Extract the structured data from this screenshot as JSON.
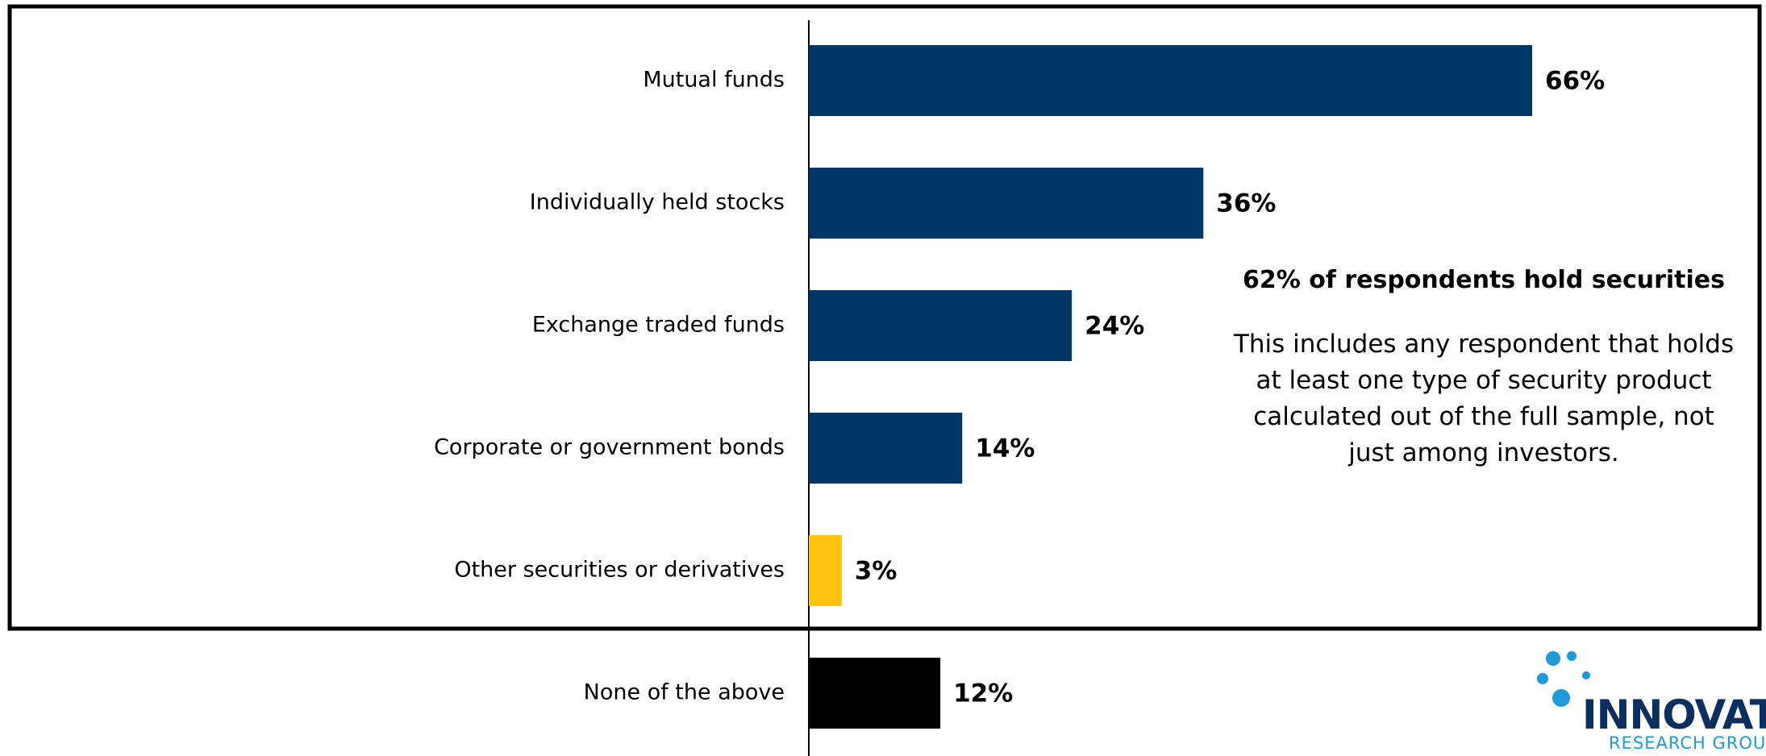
{
  "chart_data": {
    "type": "bar",
    "orientation": "horizontal",
    "categories": [
      "Mutual funds",
      "Individually held stocks",
      "Exchange traded funds",
      "Corporate or government bonds",
      "Other securities or derivatives",
      "None of the above"
    ],
    "values": [
      66,
      36,
      24,
      14,
      3,
      12
    ],
    "value_labels": [
      "66%",
      "36%",
      "24%",
      "14%",
      "3%",
      "12%"
    ],
    "bar_colors": [
      "#003865",
      "#003865",
      "#003865",
      "#003865",
      "#ffc20e",
      "#000000"
    ],
    "title": "",
    "xlabel": "",
    "ylabel": "",
    "xlim": [
      0,
      75
    ],
    "grid": false,
    "legend": "none"
  },
  "annotation": {
    "heading": "62% of respondents hold securities",
    "body_lines": [
      "This includes any respondent that holds",
      "at least one type of security product",
      "calculated out of the full sample, not",
      "just among investors."
    ]
  },
  "logo": {
    "name": "INNOVATIVE",
    "subtitle": "RESEARCH GROUP",
    "primary_color": "#0b2f5e",
    "accent_color": "#1e9ad6"
  }
}
